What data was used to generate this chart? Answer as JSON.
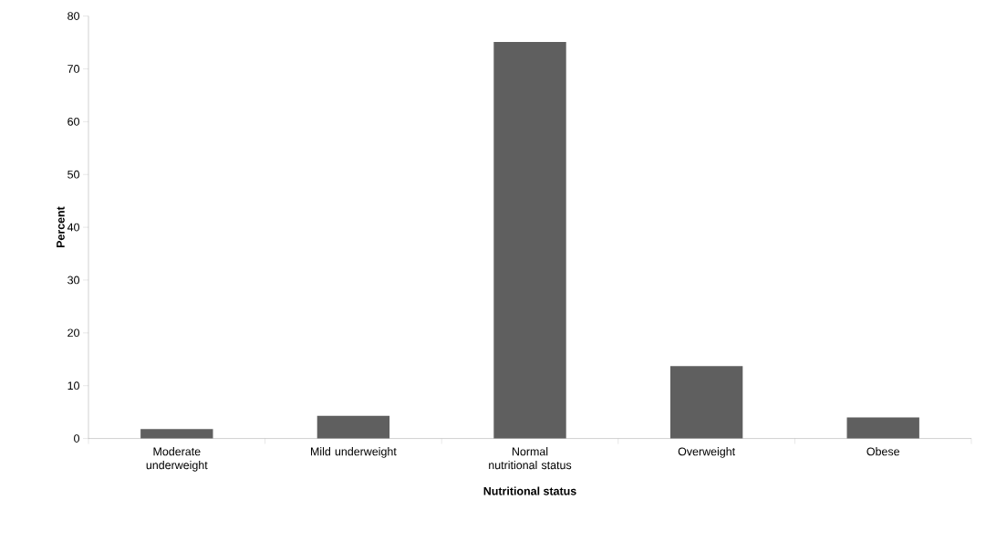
{
  "chart_data": {
    "type": "bar",
    "xlabel": "Nutritional status",
    "ylabel": "Percent",
    "categories": [
      "Moderate underweight",
      "Mild underweight",
      "Normal nutritional status",
      "Overweight",
      "Obese"
    ],
    "values": [
      1.8,
      4.3,
      75.1,
      13.7,
      4.0
    ],
    "color": "#5f5f5f",
    "ylim": [
      0,
      80
    ],
    "yticks": [
      0,
      10,
      20,
      30,
      40,
      50,
      60,
      70,
      80
    ]
  }
}
